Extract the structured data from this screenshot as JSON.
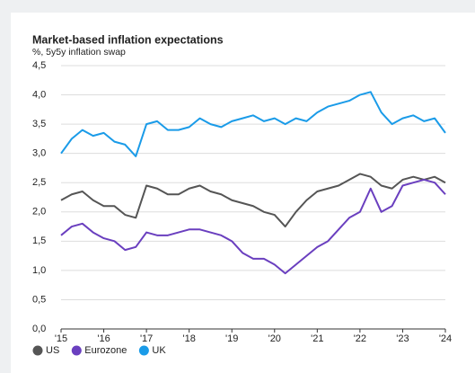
{
  "chart_data": {
    "type": "line",
    "title": "Market-based inflation expectations",
    "subtitle": "%, 5y5y inflation swap",
    "x": [
      2015,
      2015.25,
      2015.5,
      2015.75,
      2016,
      2016.25,
      2016.5,
      2016.75,
      2017,
      2017.25,
      2017.5,
      2017.75,
      2018,
      2018.25,
      2018.5,
      2018.75,
      2019,
      2019.25,
      2019.5,
      2019.75,
      2020,
      2020.25,
      2020.5,
      2020.75,
      2021,
      2021.25,
      2021.5,
      2021.75,
      2022,
      2022.25,
      2022.5,
      2022.75,
      2023,
      2023.25,
      2023.5,
      2023.75,
      2024
    ],
    "series": [
      {
        "name": "US",
        "color": "#555555",
        "values": [
          2.2,
          2.3,
          2.35,
          2.2,
          2.1,
          2.1,
          1.95,
          1.9,
          2.45,
          2.4,
          2.3,
          2.3,
          2.4,
          2.45,
          2.35,
          2.3,
          2.2,
          2.15,
          2.1,
          2.0,
          1.95,
          1.75,
          2.0,
          2.2,
          2.35,
          2.4,
          2.45,
          2.55,
          2.65,
          2.6,
          2.45,
          2.4,
          2.55,
          2.6,
          2.55,
          2.6,
          2.5
        ]
      },
      {
        "name": "Eurozone",
        "color": "#6a3fbf",
        "values": [
          1.6,
          1.75,
          1.8,
          1.65,
          1.55,
          1.5,
          1.35,
          1.4,
          1.65,
          1.6,
          1.6,
          1.65,
          1.7,
          1.7,
          1.65,
          1.6,
          1.5,
          1.3,
          1.2,
          1.2,
          1.1,
          0.95,
          1.1,
          1.25,
          1.4,
          1.5,
          1.7,
          1.9,
          2.0,
          2.4,
          2.0,
          2.1,
          2.45,
          2.5,
          2.55,
          2.5,
          2.3
        ]
      },
      {
        "name": "UK",
        "color": "#1a9be8",
        "values": [
          3.0,
          3.25,
          3.4,
          3.3,
          3.35,
          3.2,
          3.15,
          2.95,
          3.5,
          3.55,
          3.4,
          3.4,
          3.45,
          3.6,
          3.5,
          3.45,
          3.55,
          3.6,
          3.65,
          3.55,
          3.6,
          3.5,
          3.6,
          3.55,
          3.7,
          3.8,
          3.85,
          3.9,
          4.0,
          4.05,
          3.7,
          3.5,
          3.6,
          3.65,
          3.55,
          3.6,
          3.35
        ]
      }
    ],
    "xlim": [
      2015,
      2024
    ],
    "xticks": [
      {
        "value": 2015,
        "label": "'15"
      },
      {
        "value": 2016,
        "label": "'16"
      },
      {
        "value": 2017,
        "label": "'17"
      },
      {
        "value": 2018,
        "label": "'18"
      },
      {
        "value": 2019,
        "label": "'19"
      },
      {
        "value": 2020,
        "label": "'20"
      },
      {
        "value": 2021,
        "label": "'21"
      },
      {
        "value": 2022,
        "label": "'22"
      },
      {
        "value": 2023,
        "label": "'23"
      },
      {
        "value": 2024,
        "label": "'24"
      }
    ],
    "ylim": [
      0,
      4.5
    ],
    "yticks": [
      {
        "value": 0,
        "label": "0,0"
      },
      {
        "value": 0.5,
        "label": "0,5"
      },
      {
        "value": 1,
        "label": "1,0"
      },
      {
        "value": 1.5,
        "label": "1,5"
      },
      {
        "value": 2,
        "label": "2,0"
      },
      {
        "value": 2.5,
        "label": "2,5"
      },
      {
        "value": 3,
        "label": "3,0"
      },
      {
        "value": 3.5,
        "label": "3,5"
      },
      {
        "value": 4,
        "label": "4,0"
      },
      {
        "value": 4.5,
        "label": "4,5"
      }
    ],
    "grid": true
  }
}
